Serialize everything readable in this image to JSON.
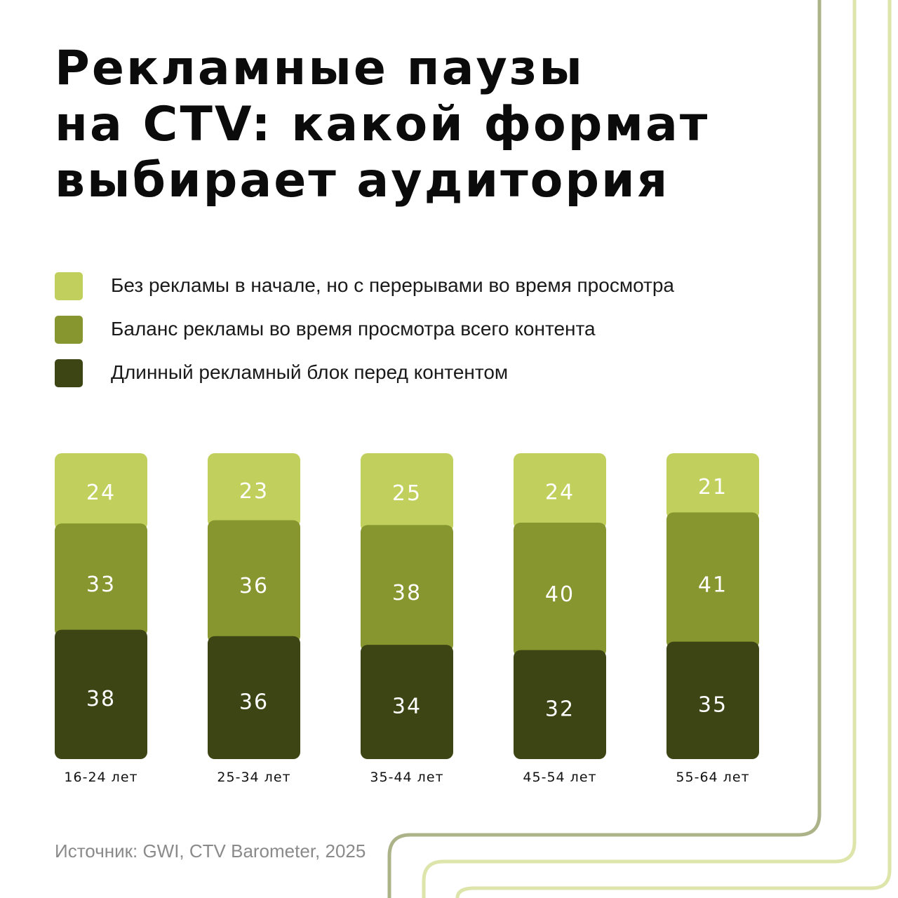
{
  "title_lines": [
    "Рекламные паузы",
    "на CTV: какой формат",
    "выбирает аудитория"
  ],
  "source": "Источник: GWI, CTV Barometer, 2025",
  "colors": {
    "light": "#c1d05c",
    "mid": "#87962e",
    "dark": "#3d4514",
    "frame_outer": "#adb389",
    "frame_inner": "#dde5aa"
  },
  "chart_data": {
    "type": "bar",
    "stacked": true,
    "categories": [
      "16-24 лет",
      "25-34 лет",
      "35-44 лет",
      "45-54 лет",
      "55-64 лет"
    ],
    "series": [
      {
        "name": "Без рекламы в начале, но с перерывами во время просмотра",
        "color": "#c1d05c",
        "values": [
          24,
          23,
          25,
          24,
          21
        ]
      },
      {
        "name": "Баланс рекламы во время просмотра всего контента",
        "color": "#87962e",
        "values": [
          33,
          36,
          38,
          40,
          41
        ]
      },
      {
        "name": "Длинный рекламный блок перед контентом",
        "color": "#3d4514",
        "values": [
          38,
          36,
          34,
          32,
          35
        ]
      }
    ],
    "legend_position": "top-left",
    "grid": false
  }
}
